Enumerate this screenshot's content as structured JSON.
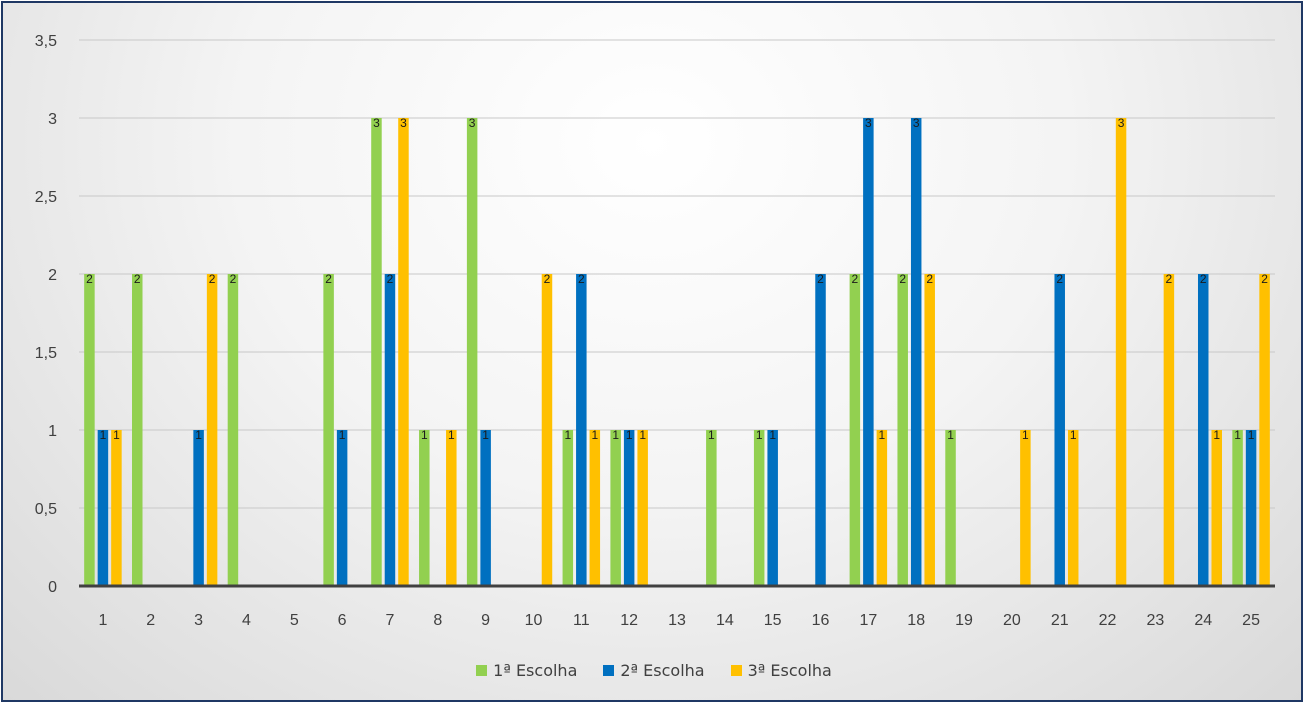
{
  "chart_data": {
    "type": "bar",
    "categories": [
      "1",
      "2",
      "3",
      "4",
      "5",
      "6",
      "7",
      "8",
      "9",
      "10",
      "11",
      "12",
      "13",
      "14",
      "15",
      "16",
      "17",
      "18",
      "19",
      "20",
      "21",
      "22",
      "23",
      "24",
      "25"
    ],
    "series": [
      {
        "name": "1ª Escolha",
        "color": "#92d050",
        "values": [
          2,
          2,
          null,
          2,
          null,
          2,
          3,
          1,
          3,
          null,
          1,
          1,
          null,
          1,
          1,
          null,
          2,
          2,
          1,
          null,
          null,
          null,
          null,
          null,
          1
        ]
      },
      {
        "name": "2ª Escolha",
        "color": "#0070c0",
        "values": [
          1,
          null,
          1,
          null,
          null,
          1,
          2,
          null,
          1,
          null,
          2,
          1,
          null,
          null,
          1,
          2,
          3,
          3,
          null,
          null,
          2,
          null,
          null,
          2,
          1
        ]
      },
      {
        "name": "3ª Escolha",
        "color": "#ffc000",
        "values": [
          1,
          null,
          2,
          null,
          null,
          null,
          3,
          1,
          null,
          2,
          1,
          1,
          null,
          null,
          null,
          null,
          1,
          2,
          null,
          1,
          1,
          3,
          2,
          1,
          2
        ]
      }
    ],
    "y_ticks": [
      "0",
      "0,5",
      "1",
      "1,5",
      "2",
      "2,5",
      "3",
      "3,5"
    ],
    "ylim": [
      0,
      3.5
    ],
    "grid": true,
    "data_labels": true,
    "legend": "bottom-center"
  }
}
